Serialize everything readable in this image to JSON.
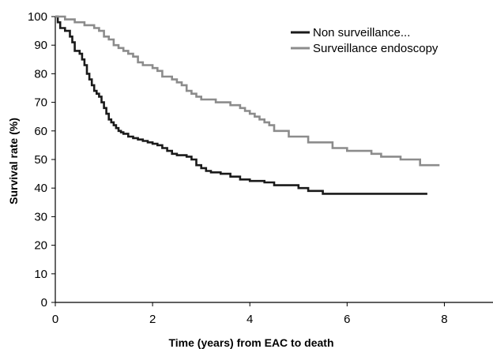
{
  "chart_data": {
    "type": "line",
    "title": "",
    "xlabel": "Time (years) from EAC to death",
    "ylabel": "Survival rate (%)",
    "xlim": [
      0,
      9
    ],
    "ylim": [
      0,
      100
    ],
    "xticks": [
      0,
      2,
      4,
      6,
      8
    ],
    "yticks": [
      0,
      10,
      20,
      30,
      40,
      50,
      60,
      70,
      80,
      90,
      100
    ],
    "grid": false,
    "legend_position": "top-right",
    "series": [
      {
        "name": "Non surveillance...",
        "color": "#1a1a1a",
        "step": true,
        "x": [
          0,
          0.05,
          0.1,
          0.2,
          0.3,
          0.35,
          0.4,
          0.5,
          0.55,
          0.6,
          0.65,
          0.7,
          0.75,
          0.8,
          0.85,
          0.9,
          0.95,
          1.0,
          1.05,
          1.1,
          1.15,
          1.2,
          1.25,
          1.3,
          1.35,
          1.4,
          1.5,
          1.6,
          1.7,
          1.8,
          1.9,
          2.0,
          2.1,
          2.2,
          2.3,
          2.4,
          2.5,
          2.7,
          2.8,
          2.9,
          3.0,
          3.1,
          3.2,
          3.4,
          3.6,
          3.8,
          4.0,
          4.3,
          4.5,
          5.0,
          5.2,
          5.5,
          6.0,
          7.0,
          7.65
        ],
        "y": [
          100,
          98,
          96,
          95,
          93,
          91,
          88,
          87,
          85,
          83,
          80,
          78,
          76,
          74,
          73,
          72,
          70,
          68,
          66,
          64,
          63,
          62,
          61,
          60,
          59.5,
          59,
          58,
          57.5,
          57,
          56.5,
          56,
          55.5,
          55,
          54,
          53,
          52,
          51.5,
          51,
          50,
          48,
          47,
          46,
          45.5,
          45,
          44,
          43,
          42.5,
          42,
          41,
          40,
          39,
          38,
          38,
          38,
          38
        ]
      },
      {
        "name": "Surveillance endoscopy",
        "color": "#8c8c8c",
        "step": true,
        "x": [
          0,
          0.2,
          0.4,
          0.6,
          0.8,
          0.9,
          1.0,
          1.1,
          1.2,
          1.3,
          1.4,
          1.5,
          1.6,
          1.7,
          1.8,
          2.0,
          2.1,
          2.2,
          2.4,
          2.5,
          2.6,
          2.7,
          2.8,
          2.9,
          3.0,
          3.3,
          3.6,
          3.8,
          3.9,
          4.0,
          4.1,
          4.2,
          4.3,
          4.4,
          4.5,
          4.8,
          5.2,
          5.7,
          6.0,
          6.5,
          6.7,
          7.1,
          7.5,
          7.9
        ],
        "y": [
          100,
          99,
          98,
          97,
          96,
          95,
          93,
          92,
          90,
          89,
          88,
          87,
          86,
          84,
          83,
          82,
          81,
          79,
          78,
          77,
          76,
          74,
          73,
          72,
          71,
          70,
          69,
          68,
          67,
          66,
          65,
          64,
          63,
          62,
          60,
          58,
          56,
          54,
          53,
          52,
          51,
          50,
          48,
          48
        ]
      }
    ]
  }
}
